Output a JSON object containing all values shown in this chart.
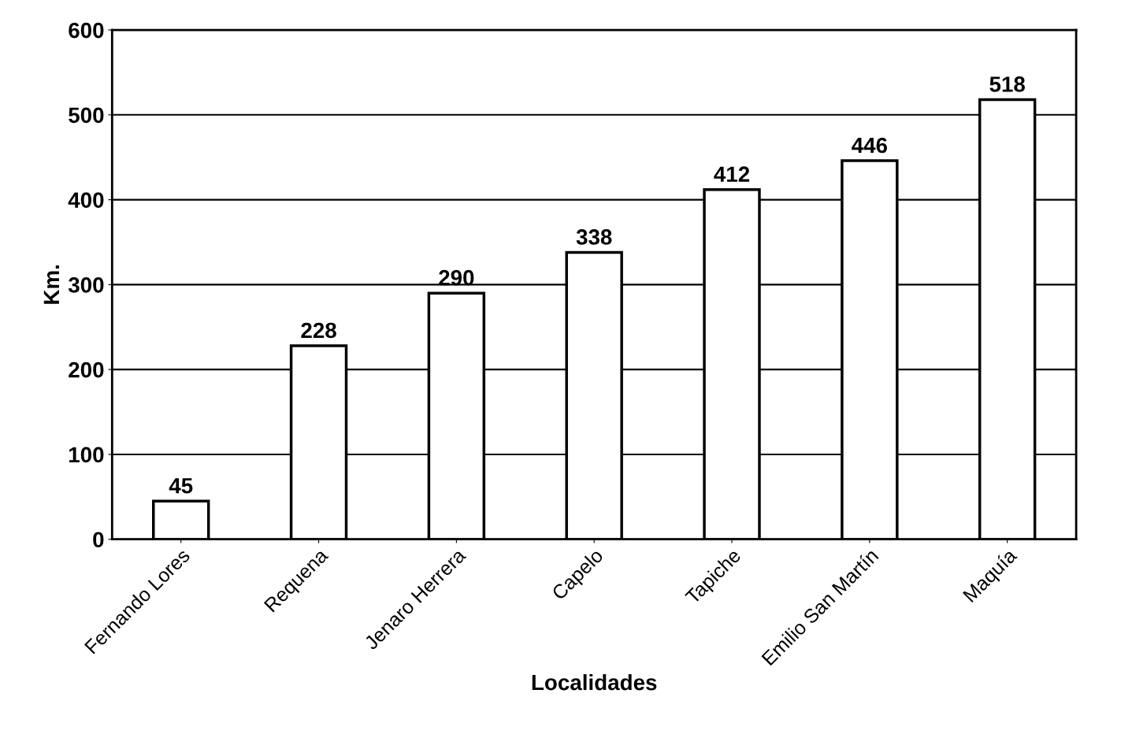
{
  "chart_data": {
    "type": "bar",
    "xlabel": "Localidades",
    "ylabel": "Km.",
    "categories": [
      "Fernando Lores",
      "Requena",
      "Jenaro Herrera",
      "Capelo",
      "Tapiche",
      "Emilio San Martín",
      "Maquía"
    ],
    "values": [
      45,
      228,
      290,
      338,
      412,
      446,
      518
    ],
    "color": "#ffffff",
    "ylim": [
      0,
      600
    ],
    "yticks": [
      0,
      100,
      200,
      300,
      400,
      500,
      600
    ],
    "grid": "y",
    "data_labels": true
  }
}
